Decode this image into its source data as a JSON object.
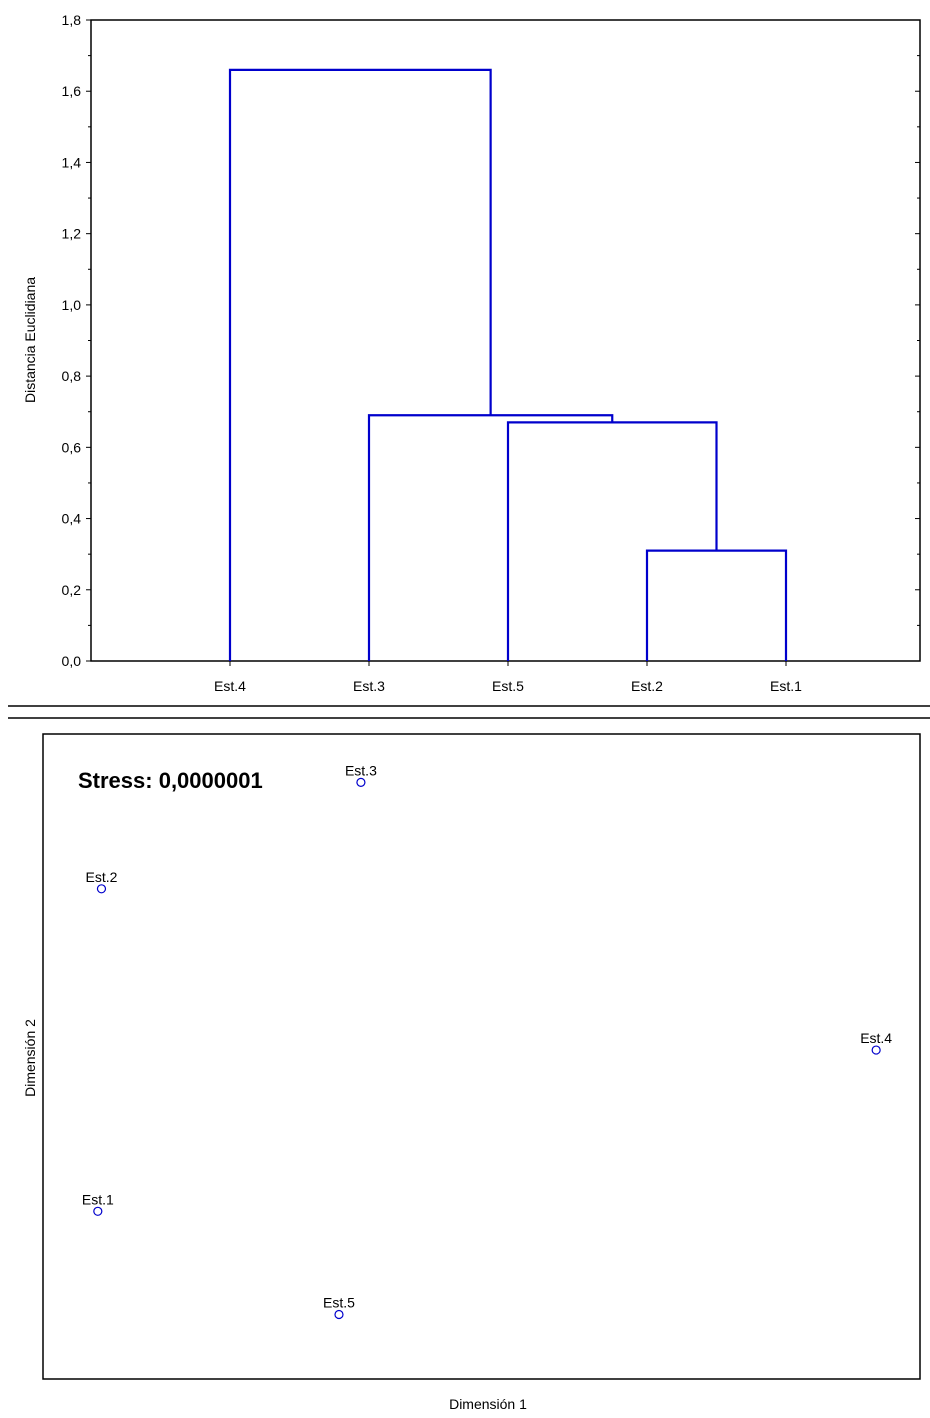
{
  "chart_data": [
    {
      "type": "dendrogram",
      "ylabel": "Distancia Euclidiana",
      "ylim": [
        0,
        1.8
      ],
      "yticks": [
        0,
        0.2,
        0.4,
        0.6,
        0.8,
        1.0,
        1.2,
        1.4,
        1.6,
        1.8
      ],
      "ytick_labels": [
        "0,0",
        "0,2",
        "0,4",
        "0,6",
        "0,8",
        "1,0",
        "1,2",
        "1,4",
        "1,6",
        "1,8"
      ],
      "leaves": [
        "Est.4",
        "Est.3",
        "Est.5",
        "Est.2",
        "Est.1"
      ],
      "merges": [
        {
          "left": "Est.2",
          "right": "Est.1",
          "height": 0.31
        },
        {
          "left": "Est.5",
          "right": "Est.2+Est.1",
          "height": 0.67
        },
        {
          "left": "Est.3",
          "right": "Est.5+Est.2+Est.1",
          "height": 0.69
        },
        {
          "left": "Est.4",
          "right": "Est.3+Est.5+Est.2+Est.1",
          "height": 1.66
        }
      ],
      "grid": false,
      "line_color": "#0000cc"
    },
    {
      "type": "scatter",
      "annotation": "Stress: 0,0000001",
      "xlabel": "Dimensión 1",
      "ylabel": "Dimensión 2",
      "xlim": [
        -1.2,
        1.2
      ],
      "ylim": [
        -1.0,
        1.0
      ],
      "points": [
        {
          "label": "Est.1",
          "x": -1.05,
          "y": -0.48
        },
        {
          "label": "Est.2",
          "x": -1.04,
          "y": 0.52
        },
        {
          "label": "Est.3",
          "x": -0.33,
          "y": 0.85
        },
        {
          "label": "Est.4",
          "x": 1.08,
          "y": 0.02
        },
        {
          "label": "Est.5",
          "x": -0.39,
          "y": -0.8
        }
      ],
      "grid": false,
      "marker_color": "#0000cc"
    }
  ]
}
